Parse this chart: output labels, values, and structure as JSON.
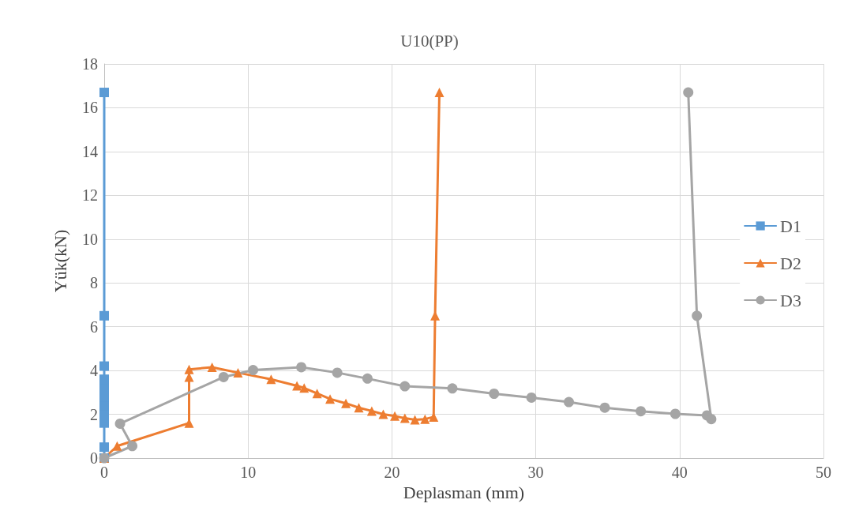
{
  "chart_data": {
    "type": "line",
    "title": "U10(PP)",
    "xlabel": "Deplasman (mm)",
    "ylabel": "Yük(kN)",
    "xlim": [
      0,
      50
    ],
    "xticks": [
      0,
      10,
      20,
      30,
      40,
      50
    ],
    "ylim": [
      0,
      18
    ],
    "yticks": [
      0,
      2,
      4,
      6,
      8,
      10,
      12,
      14,
      16,
      18
    ],
    "grid": true,
    "legend": "right",
    "line_style": "solid",
    "series": [
      {
        "name": "D1",
        "color": "#5b9bd5",
        "marker": "square",
        "x": [
          0,
          0,
          0,
          0,
          0,
          0,
          0,
          0,
          0,
          0,
          0
        ],
        "values": [
          0,
          0.5,
          1.6,
          2.0,
          2.4,
          2.8,
          3.2,
          3.6,
          4.2,
          6.5,
          16.7
        ]
      },
      {
        "name": "D2",
        "color": "#ed7d31",
        "marker": "triangle",
        "x": [
          0,
          0.9,
          5.9,
          5.9,
          5.9,
          7.5,
          9.3,
          11.6,
          13.4,
          13.9,
          14.8,
          15.7,
          16.8,
          17.7,
          18.6,
          19.4,
          20.2,
          20.9,
          21.6,
          22.3,
          22.9,
          23,
          23.3
        ],
        "values": [
          0,
          0.55,
          1.6,
          3.7,
          4.05,
          4.15,
          3.9,
          3.6,
          3.3,
          3.2,
          2.95,
          2.7,
          2.5,
          2.3,
          2.15,
          2.0,
          1.92,
          1.82,
          1.75,
          1.78,
          1.88,
          6.5,
          16.7
        ]
      },
      {
        "name": "D3",
        "color": "#a5a5a5",
        "marker": "circle",
        "x": [
          0,
          1.95,
          1.1,
          8.3,
          10.35,
          13.7,
          16.2,
          18.3,
          20.9,
          24.2,
          27.1,
          29.7,
          32.3,
          34.8,
          37.3,
          39.7,
          41.9,
          42.2,
          41.2,
          40.6
        ],
        "values": [
          0,
          0.55,
          1.57,
          3.7,
          4.02,
          4.15,
          3.9,
          3.63,
          3.28,
          3.18,
          2.94,
          2.76,
          2.56,
          2.3,
          2.14,
          2.02,
          1.95,
          1.78,
          6.5,
          16.7
        ]
      }
    ]
  }
}
